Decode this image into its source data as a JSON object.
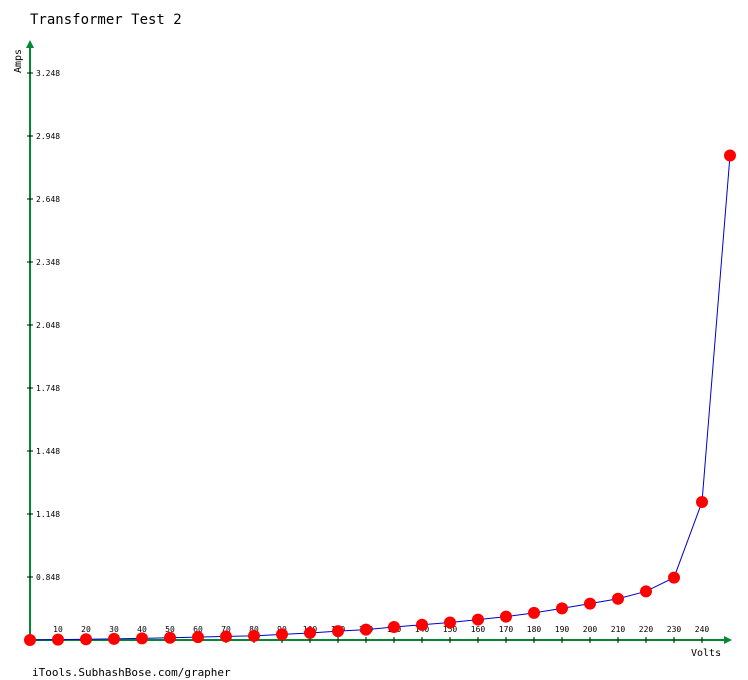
{
  "chart_data": {
    "type": "line",
    "title": "Transformer Test 2",
    "xlabel": "Volts",
    "ylabel": "Amps",
    "x": [
      0,
      10,
      20,
      30,
      40,
      50,
      60,
      70,
      80,
      90,
      100,
      110,
      120,
      130,
      140,
      150,
      160,
      170,
      180,
      190,
      200,
      210,
      220,
      230,
      240,
      250
    ],
    "series": [
      {
        "values": [
          0.0,
          0.005,
          0.01,
          0.015,
          0.022,
          0.03,
          0.038,
          0.048,
          0.055,
          0.075,
          0.095,
          0.12,
          0.14,
          0.175,
          0.205,
          0.235,
          0.275,
          0.315,
          0.365,
          0.425,
          0.49,
          0.555,
          0.655,
          0.84,
          1.205,
          2.855
        ],
        "color": "#0000cc",
        "marker_color": "#ff0000"
      }
    ],
    "x_ticks": [
      10,
      20,
      30,
      40,
      50,
      60,
      70,
      80,
      90,
      100,
      110,
      120,
      130,
      140,
      150,
      160,
      170,
      180,
      190,
      200,
      210,
      220,
      230,
      240
    ],
    "y_ticks": [
      0.848,
      1.148,
      1.448,
      1.748,
      2.048,
      2.348,
      2.648,
      2.948,
      3.248
    ],
    "y_tick_labels": [
      "0.848",
      "1.148",
      "1.448",
      "1.748",
      "2.048",
      "2.348",
      "2.648",
      "2.948",
      "3.248"
    ],
    "x_tick_labels": [
      "10",
      "20",
      "30",
      "40",
      "50",
      "60",
      "70",
      "80",
      "90",
      "100",
      "110",
      "120",
      "130",
      "140",
      "150",
      "160",
      "170",
      "180",
      "190",
      "200",
      "210",
      "220",
      "230",
      "240"
    ],
    "xlim": [
      0,
      250
    ],
    "ylim": [
      0,
      3.248
    ],
    "axis_color": "#008833",
    "grid": false
  },
  "footer": {
    "credit": "iTools.SubhashBose.com/grapher"
  }
}
